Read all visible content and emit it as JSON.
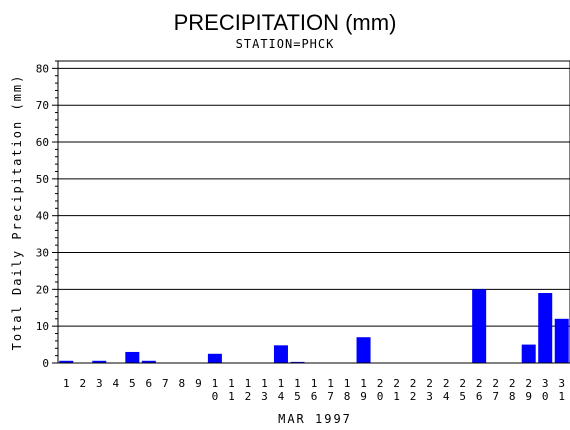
{
  "chart_data": {
    "type": "bar",
    "title": "PRECIPITATION (mm)",
    "subtitle": "STATION=PHCK",
    "xlabel": "MAR 1997",
    "ylabel": "Total Daily Precipitation (mm)",
    "ylim": [
      0,
      82
    ],
    "yticks": [
      0,
      10,
      20,
      30,
      40,
      50,
      60,
      70,
      80
    ],
    "grid": "horizontal",
    "bar_color": "#0000ff",
    "categories": [
      1,
      2,
      3,
      4,
      5,
      6,
      7,
      8,
      9,
      10,
      11,
      12,
      13,
      14,
      15,
      16,
      17,
      18,
      19,
      20,
      21,
      22,
      23,
      24,
      25,
      26,
      27,
      28,
      29,
      30,
      31
    ],
    "values": [
      0.6,
      0,
      0.6,
      0,
      3,
      0.6,
      0,
      0,
      0,
      2.5,
      0,
      0,
      0,
      4.8,
      0.3,
      0,
      0,
      0,
      7,
      0,
      0,
      0,
      0,
      0,
      0,
      20,
      0,
      0,
      5,
      19,
      12
    ]
  }
}
